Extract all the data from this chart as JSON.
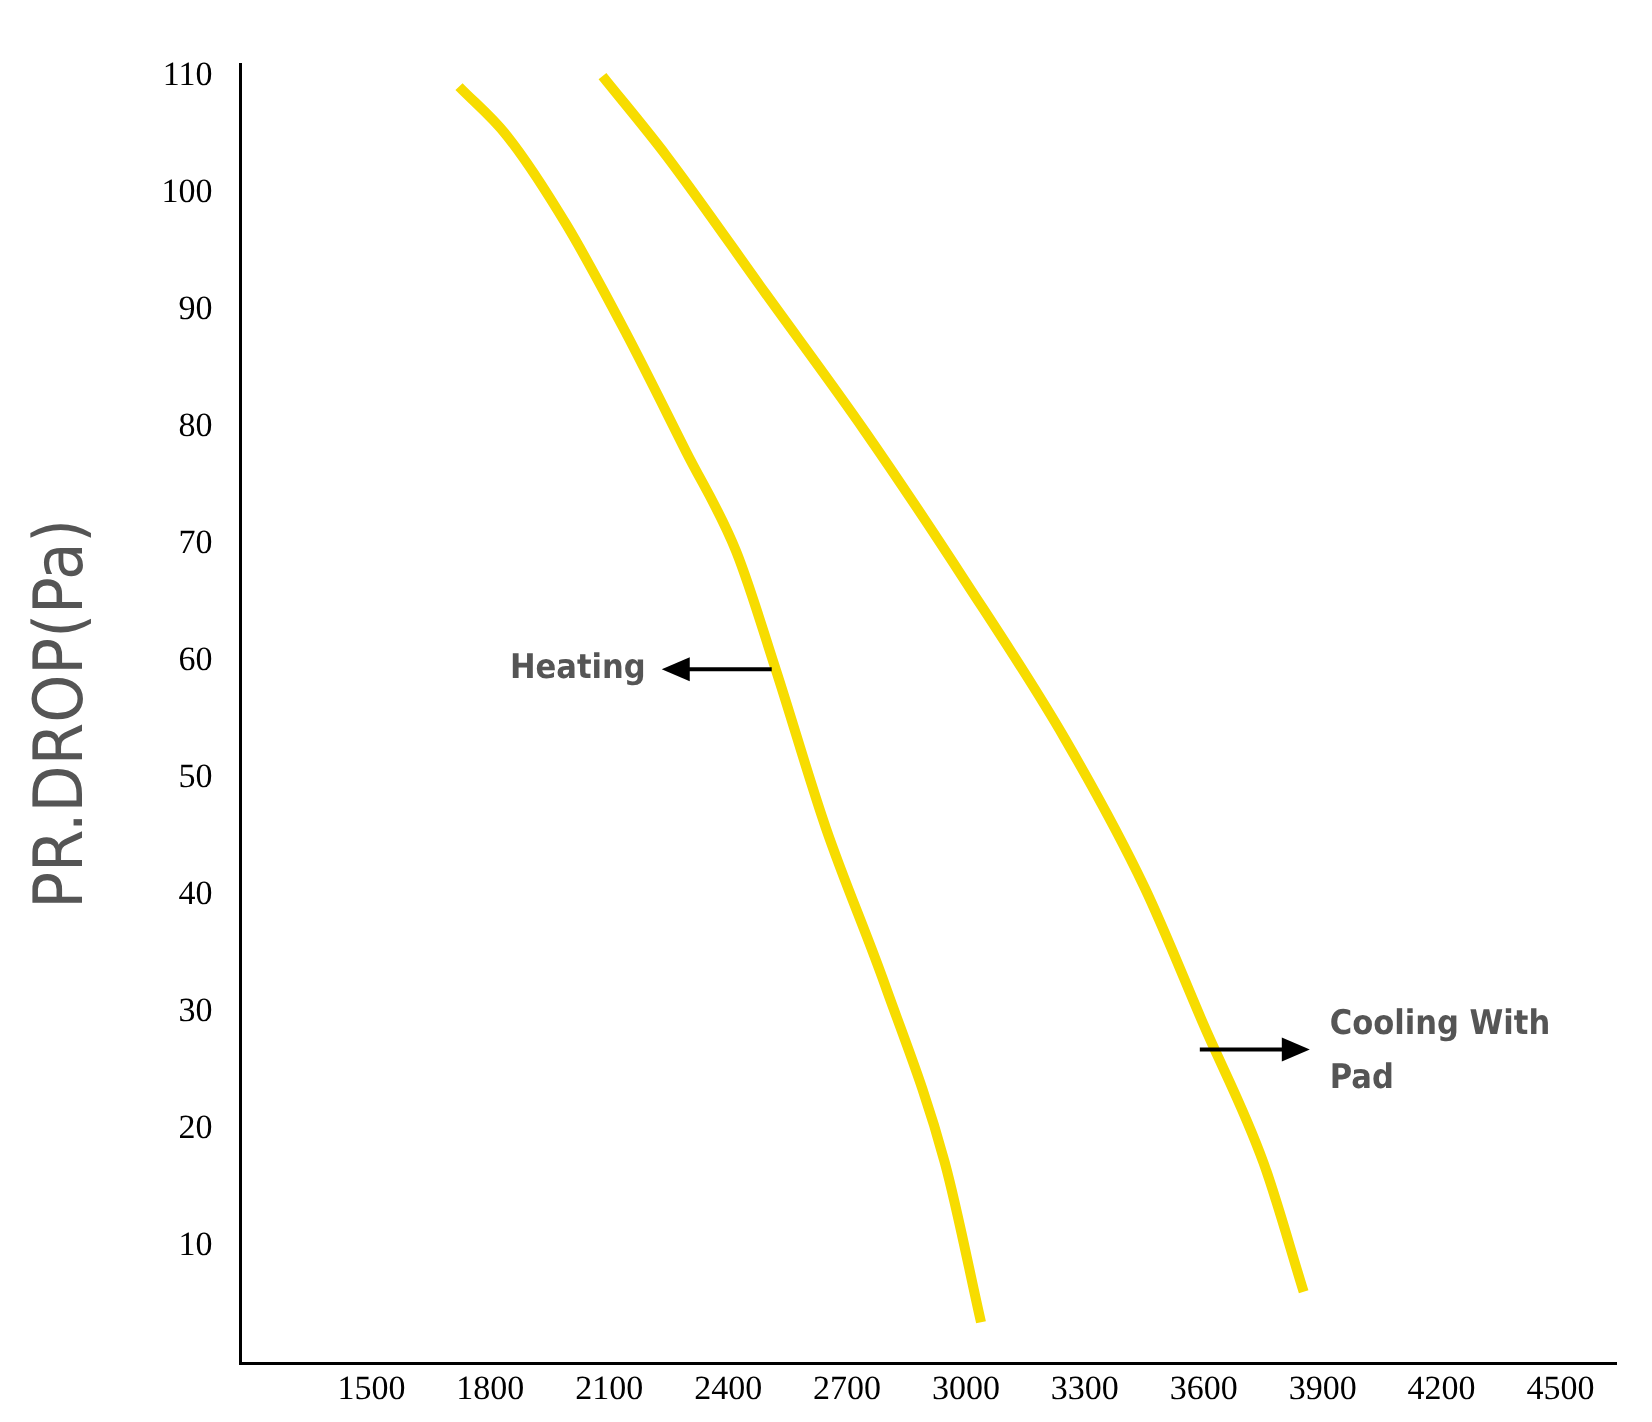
{
  "chart_data": {
    "type": "line",
    "ylabel": "PR.DROP(Pa)",
    "xlim": [
      1170,
      4640
    ],
    "xticks": [
      1500,
      1800,
      2100,
      2400,
      2700,
      3000,
      3300,
      3600,
      3900,
      4200,
      4500
    ],
    "ylim": [
      0,
      111
    ],
    "yticks": [
      10,
      20,
      30,
      40,
      50,
      60,
      70,
      80,
      90,
      100,
      110
    ],
    "grid": false,
    "legend": false,
    "marker": "none",
    "line_style": "solid",
    "series": [
      {
        "color": "#f7dc00",
        "x": [
          1721,
          1842,
          1992,
          2143,
          2294,
          2420,
          2520,
          2646,
          2796,
          2947,
          3038
        ],
        "values": [
          109.1,
          104.9,
          97.3,
          88.0,
          77.9,
          69.4,
          59.3,
          45.8,
          32.3,
          17.1,
          3.5
        ]
      },
      {
        "color": "#f7dc00",
        "x": [
          2083,
          2244,
          2495,
          2746,
          2997,
          3249,
          3450,
          3600,
          3751,
          3852
        ],
        "values": [
          110,
          103.2,
          91.4,
          79.6,
          66.9,
          53.4,
          40.7,
          28.9,
          17.1,
          6.1
        ]
      }
    ],
    "annotations": [
      {
        "text": "Heating",
        "x": 2510,
        "y": 59.3
      },
      {
        "text": "Cooling With\nPad",
        "x": 3590,
        "y": 26.8
      }
    ]
  }
}
